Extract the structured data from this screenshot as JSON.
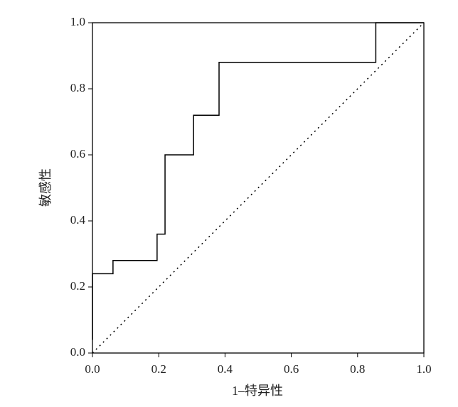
{
  "chart_data": {
    "type": "line",
    "xlabel": "1–特异性",
    "ylabel": "敏感性",
    "xlim": [
      0,
      1
    ],
    "ylim": [
      0,
      1
    ],
    "xticks": [
      {
        "value": 0,
        "label": "0.0"
      },
      0.2,
      0.4,
      0.6,
      0.8,
      {
        "value": 1,
        "label": "1.0"
      }
    ],
    "yticks": [
      {
        "value": 0,
        "label": "0.0"
      },
      0.2,
      0.4,
      0.6,
      0.8,
      {
        "value": 1,
        "label": "1.0"
      }
    ],
    "grid": false,
    "series": [
      {
        "color": "#000000",
        "dash": "solid",
        "x": [
          0,
          0,
          0.062,
          0.062,
          0.195,
          0.195,
          0.219,
          0.219,
          0.305,
          0.305,
          0.382,
          0.382,
          0.855,
          0.855,
          1.0
        ],
        "values": [
          0.04,
          0.24,
          0.24,
          0.28,
          0.28,
          0.36,
          0.36,
          0.6,
          0.6,
          0.72,
          0.72,
          0.88,
          0.88,
          1.0,
          1.0
        ]
      },
      {
        "color": "#000000",
        "dash": "dotted",
        "x": [
          0,
          1
        ],
        "values": [
          0,
          1
        ]
      }
    ]
  }
}
